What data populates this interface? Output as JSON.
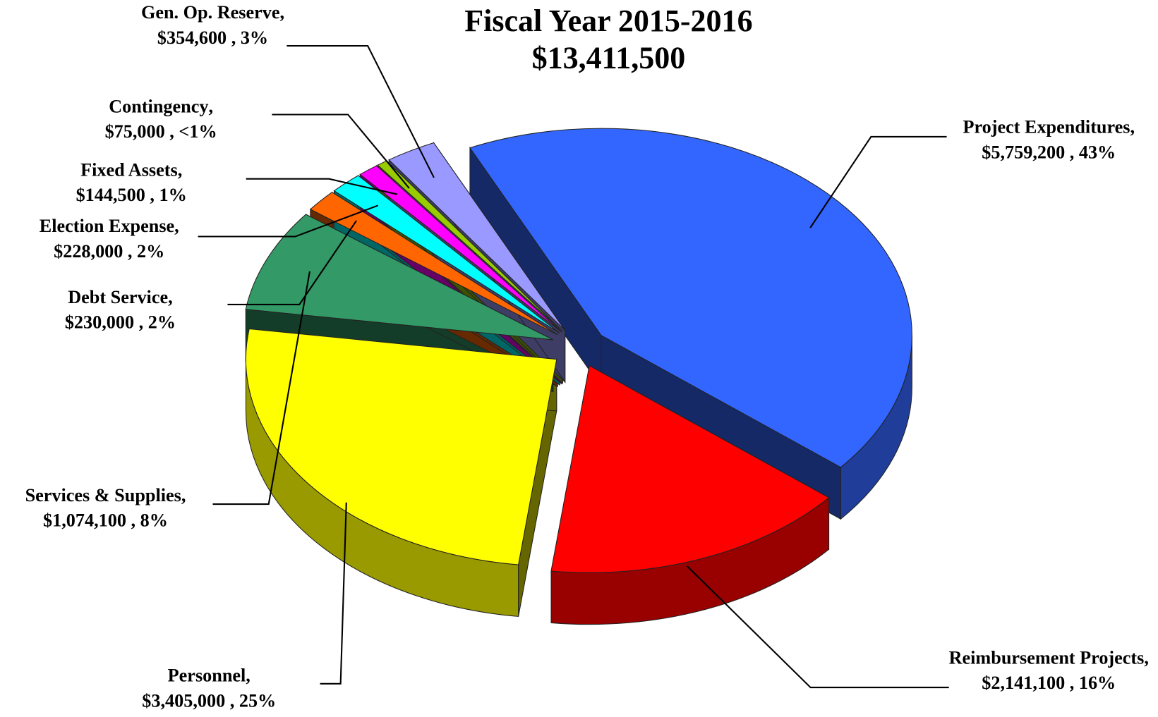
{
  "chart_data": {
    "type": "pie",
    "title": "Fiscal Year 2015-2016",
    "subtitle": "$13,411,500",
    "categories": [
      "Project Expenditures",
      "Reimbursement Projects",
      "Personnel",
      "Services & Supplies",
      "Debt Service",
      "Election Expense",
      "Fixed Assets",
      "Contingency",
      "Gen. Op. Reserve"
    ],
    "values": [
      5759200,
      2141100,
      3405000,
      1074100,
      230000,
      228000,
      144500,
      75000,
      354600
    ],
    "value_labels": [
      "$5,759,200",
      "$2,141,100",
      "$3,405,000",
      "$1,074,100",
      "$230,000",
      "$228,000",
      "$144,500",
      "$75,000",
      "$354,600"
    ],
    "percent_labels": [
      "43%",
      "16%",
      "25%",
      "8%",
      "2%",
      "2%",
      "1%",
      "<1%",
      "3%"
    ],
    "colors": [
      "#3366ff",
      "#ff0000",
      "#ffff00",
      "#339966",
      "#ff6600",
      "#00ffff",
      "#ff00ff",
      "#99cc00",
      "#9999ff"
    ]
  }
}
